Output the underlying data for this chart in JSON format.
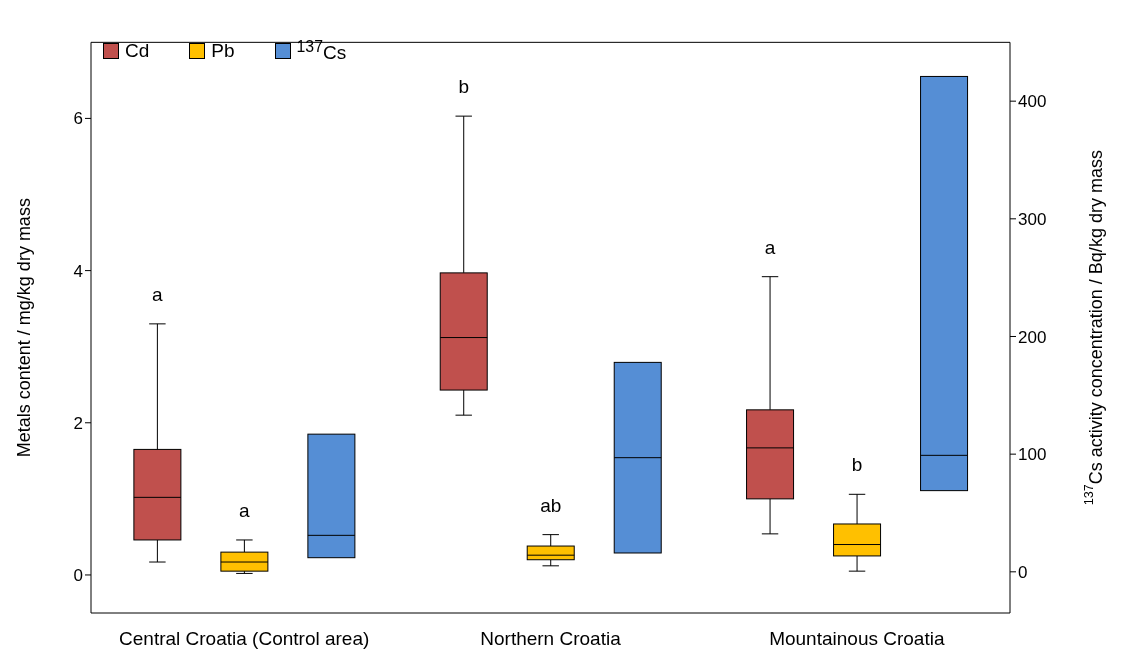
{
  "chart_data": {
    "type": "box",
    "ylabel": "Metals content / mg/kg dry mass",
    "y2label": "$^{137}$Cs activity concentration / Bq/kg dry mass",
    "categories": [
      "Central Croatia (Control area)",
      "Northern Croatia",
      "Mountainous Croatia"
    ],
    "series": [
      {
        "name": "Cd",
        "color": "#c0504d",
        "boxes": [
          {
            "low": 0.17,
            "q1": 0.46,
            "median": 1.02,
            "q3": 1.65,
            "high": 3.3
          },
          {
            "low": 2.1,
            "q1": 2.43,
            "median": 3.12,
            "q3": 3.97,
            "high": 6.03
          },
          {
            "low": 0.54,
            "q1": 1.0,
            "median": 1.67,
            "q3": 2.17,
            "high": 3.92
          }
        ]
      },
      {
        "name": "Pb",
        "color": "#ffc000",
        "boxes": [
          {
            "low": 0.02,
            "q1": 0.05,
            "median": 0.17,
            "q3": 0.3,
            "high": 0.46
          },
          {
            "low": 0.12,
            "q1": 0.2,
            "median": 0.26,
            "q3": 0.38,
            "high": 0.53
          },
          {
            "low": 0.05,
            "q1": 0.25,
            "median": 0.4,
            "q3": 0.67,
            "high": 1.06
          }
        ]
      },
      {
        "name": "$^{137}$Cs",
        "color": "#558ed5",
        "axis": "y2",
        "boxes": [
          {
            "low": 12,
            "q1": 12,
            "median": 31,
            "q3": 117,
            "high": 117
          },
          {
            "low": 16,
            "q1": 16,
            "median": 97,
            "q3": 178,
            "high": 178
          },
          {
            "low": 69,
            "q1": 69,
            "median": 99,
            "q3": 421,
            "high": 421
          }
        ]
      }
    ],
    "ylim": [
      -0.5,
      7
    ],
    "yticks": [
      0,
      2,
      4,
      6
    ],
    "y2lim": [
      -35,
      450
    ],
    "y2ticks": [
      0,
      100,
      200,
      300,
      400
    ],
    "legend": "top left",
    "grid": false,
    "annotations": [
      "a",
      "a",
      "b",
      "ab",
      "a",
      "b"
    ]
  }
}
